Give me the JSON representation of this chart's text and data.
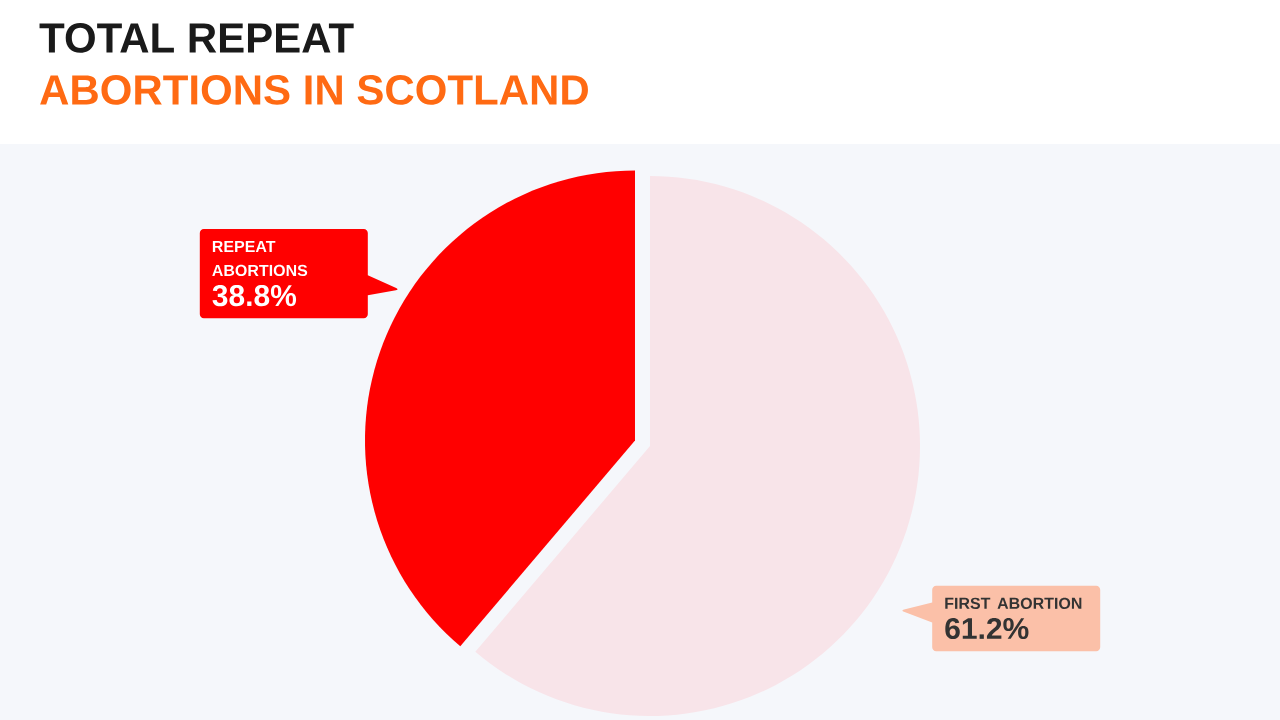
{
  "chart_data": {
    "type": "pie",
    "title": "TOTAL REPEAT",
    "subtitle": "ABORTIONS IN SCOTLAND",
    "categories": [
      "REPEAT ABORTIONS",
      "FIRST ABORTION"
    ],
    "values": [
      38.8,
      61.2
    ],
    "colors": [
      "#ff0000",
      "#f8e4e9"
    ],
    "value_labels": [
      "38.8%",
      "61.2%"
    ]
  }
}
